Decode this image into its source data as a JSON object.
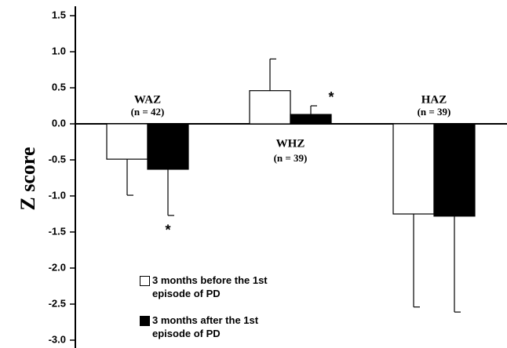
{
  "chart_data": {
    "type": "bar",
    "y_label": "Z score",
    "categories": [
      "WAZ",
      "WHZ",
      "HAZ"
    ],
    "category_notes": [
      "(n = 42)",
      "(n = 39)",
      "(n = 39)"
    ],
    "series": [
      {
        "name": "3 months before the 1st episode of PD",
        "color": "#ffffff",
        "values": [
          -0.49,
          0.46,
          -1.25
        ],
        "errors": [
          0.5,
          0.44,
          1.29
        ]
      },
      {
        "name": "3 months after the 1st episode of PD",
        "color": "#000000",
        "values": [
          -0.63,
          0.13,
          -1.28
        ],
        "errors": [
          0.64,
          0.12,
          1.33
        ]
      }
    ],
    "annotations": [
      {
        "text": "*",
        "category": 0,
        "series": 1
      },
      {
        "text": "*",
        "category": 1,
        "series": 1
      }
    ],
    "ylim": [
      -3.0,
      1.5
    ],
    "yticks": [
      1.5,
      {
        "value": 1,
        "label": "1.0"
      },
      0.5,
      {
        "value": 0,
        "label": "0.0"
      },
      -0.5,
      {
        "value": -1,
        "label": "-1.0"
      },
      -1.5,
      {
        "value": -2,
        "label": "-2.0"
      },
      -2.5,
      {
        "value": -3,
        "label": "-3.0"
      }
    ]
  }
}
